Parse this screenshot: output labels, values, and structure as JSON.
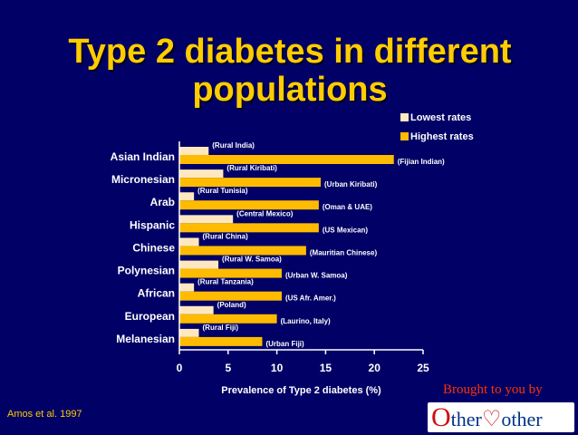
{
  "title": "Type 2 diabetes in different populations",
  "citation": "Amos et al. 1997",
  "branding": {
    "brought_text": "Brought to you by",
    "logo_text_1": "ther",
    "logo_text_2": "other"
  },
  "colors": {
    "background": "#000066",
    "lowest": "#ffe8c0",
    "highest": "#ffbb00",
    "title": "#ffcc00",
    "axis": "#ffffff"
  },
  "chart_data": {
    "type": "bar",
    "orientation": "horizontal",
    "xlabel": "Prevalence of Type 2 diabetes (%)",
    "xlim": [
      0,
      25
    ],
    "xticks": [
      0,
      5,
      10,
      15,
      20,
      25
    ],
    "legend": [
      "Lowest rates",
      "Highest rates"
    ],
    "legend_position": "top-right",
    "categories": [
      "Asian Indian",
      "Micronesian",
      "Arab",
      "Hispanic",
      "Chinese",
      "Polynesian",
      "African",
      "European",
      "Melanesian"
    ],
    "series": [
      {
        "name": "Lowest rates",
        "values": [
          3,
          4.5,
          1.5,
          5.5,
          2,
          4,
          1.5,
          3.5,
          2
        ],
        "labels": [
          "(Rural India)",
          "(Rural Kiribati)",
          "(Rural Tunisia)",
          "(Central Mexico)",
          "(Rural China)",
          "(Rural W. Samoa)",
          "(Rural Tanzania)",
          "(Poland)",
          "(Rural Fiji)"
        ]
      },
      {
        "name": "Highest rates",
        "values": [
          22,
          14.5,
          14.3,
          14.3,
          13,
          10.5,
          10.5,
          10,
          8.5
        ],
        "labels": [
          "(Fijian Indian)",
          "(Urban Kiribati)",
          "(Oman & UAE)",
          "(US Mexican)",
          "(Mauritian Chinese)",
          "(Urban W. Samoa)",
          "(US Afr. Amer.)",
          "(Laurino, Italy)",
          "(Urban Fiji)"
        ]
      }
    ]
  }
}
